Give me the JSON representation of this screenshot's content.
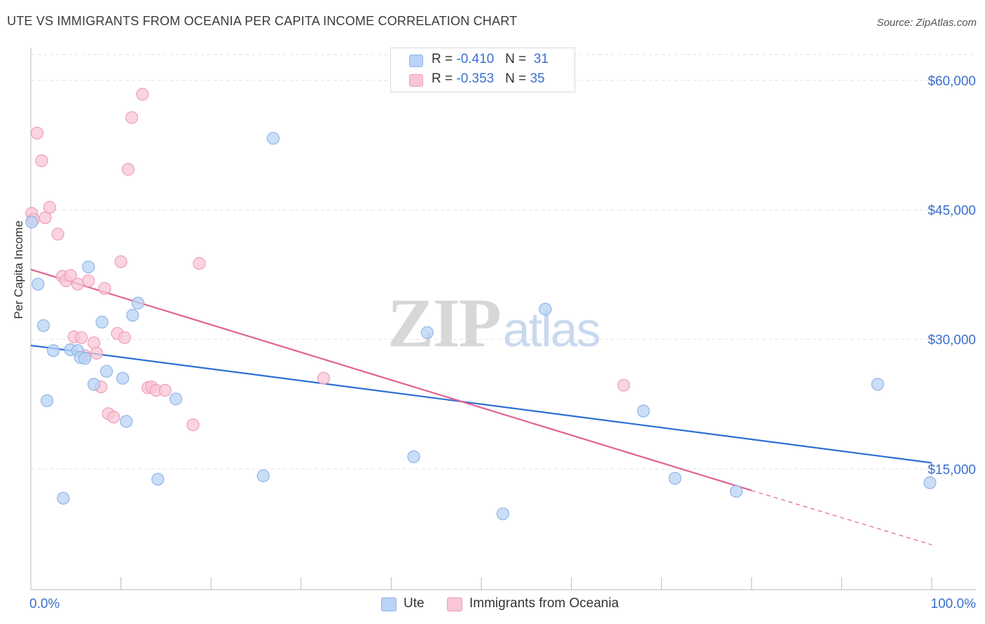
{
  "title": "UTE VS IMMIGRANTS FROM OCEANIA PER CAPITA INCOME CORRELATION CHART",
  "source": "Source: ZipAtlas.com",
  "watermark": {
    "zip": "ZIP",
    "atlas": "atlas"
  },
  "legend": {
    "rows": [
      {
        "r_label": "R = ",
        "r_value": "-0.410",
        "n_label": "N = ",
        "n_value": "31"
      },
      {
        "r_label": "R = ",
        "r_value": "-0.353",
        "n_label": "N = ",
        "n_value": "35"
      }
    ]
  },
  "colors": {
    "ute_fill": "#b9d3f6",
    "ute_stroke": "#8fb4e6",
    "ute_line": "#2a6fd0",
    "oce_fill": "#f8c6d5",
    "oce_stroke": "#ee9fb7",
    "oce_line": "#e0628f",
    "axis_text": "#3a6fcf",
    "grid": "#e2e2e2"
  },
  "chart_data": {
    "type": "scatter",
    "title": "UTE VS IMMIGRANTS FROM OCEANIA PER CAPITA INCOME CORRELATION CHART",
    "xlabel": "",
    "ylabel": "Per Capita Income",
    "xlim": [
      0,
      100
    ],
    "ylim": [
      1000,
      63000
    ],
    "x_tick_labels": [
      "0.0%",
      "100.0%"
    ],
    "y_ticks": [
      15000,
      30000,
      45000,
      60000
    ],
    "y_tick_labels": [
      "$15,000",
      "$30,000",
      "$45,000",
      "$60,000"
    ],
    "grid": true,
    "legend_position": "top-center",
    "series": [
      {
        "name": "Ute",
        "R": -0.41,
        "N": 31,
        "trend": {
          "x": [
            0,
            100
          ],
          "y": [
            29300,
            15700
          ]
        },
        "points": [
          [
            0.1,
            43600
          ],
          [
            0.8,
            36400
          ],
          [
            1.4,
            31600
          ],
          [
            1.8,
            22900
          ],
          [
            2.5,
            28700
          ],
          [
            3.6,
            11600
          ],
          [
            4.4,
            28800
          ],
          [
            5.2,
            28700
          ],
          [
            5.5,
            27900
          ],
          [
            6.0,
            27800
          ],
          [
            6.4,
            38400
          ],
          [
            7.0,
            24800
          ],
          [
            7.9,
            32000
          ],
          [
            8.4,
            26300
          ],
          [
            10.2,
            25500
          ],
          [
            10.6,
            20500
          ],
          [
            11.3,
            32800
          ],
          [
            11.9,
            34200
          ],
          [
            14.1,
            13800
          ],
          [
            16.1,
            23100
          ],
          [
            25.8,
            14200
          ],
          [
            26.9,
            53300
          ],
          [
            42.5,
            16400
          ],
          [
            44.0,
            30800
          ],
          [
            52.4,
            9800
          ],
          [
            57.1,
            33500
          ],
          [
            68.0,
            21700
          ],
          [
            71.5,
            13900
          ],
          [
            78.3,
            12400
          ],
          [
            94.0,
            24800
          ],
          [
            99.8,
            13400
          ]
        ]
      },
      {
        "name": "Immigrants from Oceania",
        "R": -0.353,
        "N": 35,
        "trend": {
          "x": [
            0,
            80
          ],
          "y": [
            38100,
            12500
          ]
        },
        "trend_dashed": {
          "x": [
            80,
            100
          ],
          "y": [
            12500,
            6200
          ]
        },
        "points": [
          [
            0.1,
            44600
          ],
          [
            0.7,
            53900
          ],
          [
            1.2,
            50700
          ],
          [
            1.6,
            44100
          ],
          [
            2.1,
            45300
          ],
          [
            3.0,
            42200
          ],
          [
            3.5,
            37300
          ],
          [
            3.9,
            36800
          ],
          [
            4.4,
            37400
          ],
          [
            4.8,
            30300
          ],
          [
            5.2,
            36400
          ],
          [
            5.6,
            30200
          ],
          [
            6.0,
            28100
          ],
          [
            6.4,
            36800
          ],
          [
            7.0,
            29600
          ],
          [
            7.3,
            28400
          ],
          [
            7.8,
            24500
          ],
          [
            8.2,
            35900
          ],
          [
            8.6,
            21400
          ],
          [
            9.2,
            21000
          ],
          [
            9.6,
            30700
          ],
          [
            10.0,
            39000
          ],
          [
            10.4,
            30200
          ],
          [
            10.8,
            49700
          ],
          [
            11.2,
            55700
          ],
          [
            12.4,
            58400
          ],
          [
            13.0,
            24400
          ],
          [
            13.4,
            24500
          ],
          [
            13.9,
            24100
          ],
          [
            14.9,
            24100
          ],
          [
            18.0,
            20100
          ],
          [
            18.7,
            38800
          ],
          [
            32.5,
            25500
          ],
          [
            65.8,
            24700
          ],
          [
            0.3,
            43900
          ]
        ]
      }
    ]
  },
  "bottom_legend": {
    "ute": "Ute",
    "oceania": "Immigrants from Oceania"
  }
}
